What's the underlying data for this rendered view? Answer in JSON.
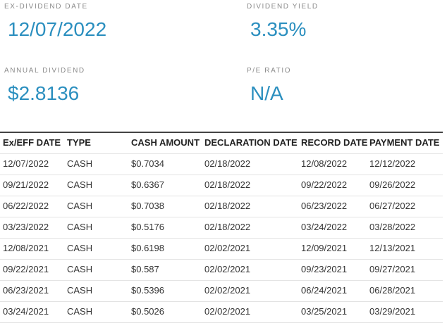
{
  "stats": [
    {
      "label": "EX-DIVIDEND DATE",
      "value": "12/07/2022"
    },
    {
      "label": "DIVIDEND YIELD",
      "value": "3.35%"
    },
    {
      "label": "ANNUAL DIVIDEND",
      "value": "$2.8136"
    },
    {
      "label": "P/E RATIO",
      "value": "N/A"
    }
  ],
  "table": {
    "headers": [
      "Ex/EFF DATE",
      "TYPE",
      "CASH AMOUNT",
      "DECLARATION DATE",
      "RECORD DATE",
      "PAYMENT DATE"
    ],
    "rows": [
      [
        "12/07/2022",
        "CASH",
        "$0.7034",
        "02/18/2022",
        "12/08/2022",
        "12/12/2022"
      ],
      [
        "09/21/2022",
        "CASH",
        "$0.6367",
        "02/18/2022",
        "09/22/2022",
        "09/26/2022"
      ],
      [
        "06/22/2022",
        "CASH",
        "$0.7038",
        "02/18/2022",
        "06/23/2022",
        "06/27/2022"
      ],
      [
        "03/23/2022",
        "CASH",
        "$0.5176",
        "02/18/2022",
        "03/24/2022",
        "03/28/2022"
      ],
      [
        "12/08/2021",
        "CASH",
        "$0.6198",
        "02/02/2021",
        "12/09/2021",
        "12/13/2021"
      ],
      [
        "09/22/2021",
        "CASH",
        "$0.587",
        "02/02/2021",
        "09/23/2021",
        "09/27/2021"
      ],
      [
        "06/23/2021",
        "CASH",
        "$0.5396",
        "02/02/2021",
        "06/24/2021",
        "06/28/2021"
      ],
      [
        "03/24/2021",
        "CASH",
        "$0.5026",
        "02/02/2021",
        "03/25/2021",
        "03/29/2021"
      ]
    ]
  }
}
